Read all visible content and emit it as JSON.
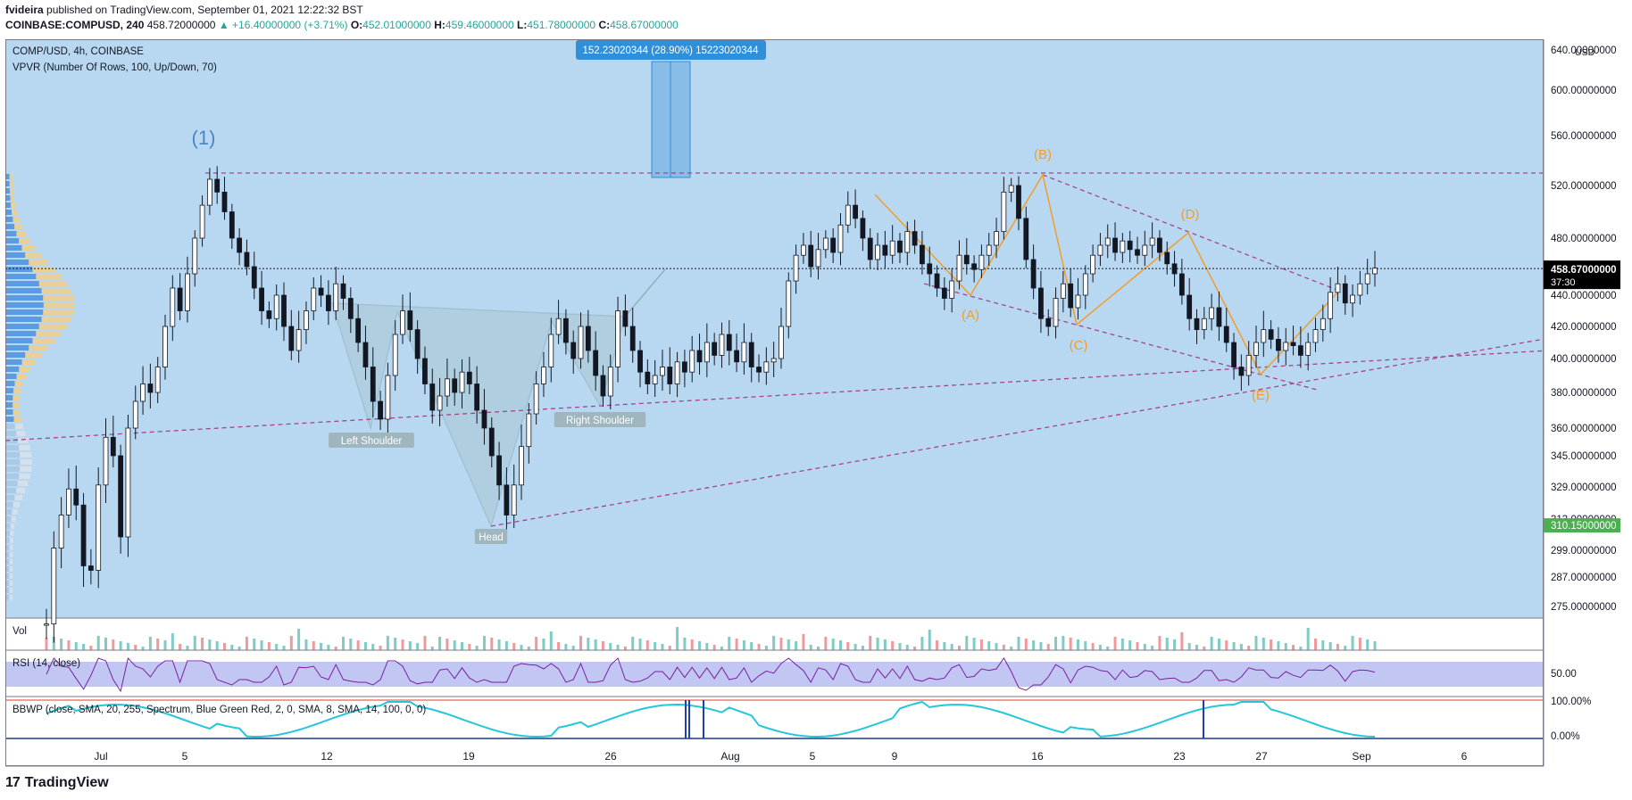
{
  "header": {
    "author": "fvideira",
    "published": "published on TradingView.com, September 01, 2021 12:22:32 BST",
    "symbol": "COINBASE:COMPUSD, 240",
    "last": "458.72000000",
    "change": "▲ +16.40000000 (+3.71%)",
    "o_label": "O:",
    "o": "452.01000000",
    "h_label": "H:",
    "h": "459.46000000",
    "l_label": "L:",
    "l": "451.78000000",
    "c_label": "C:",
    "c": "458.67000000"
  },
  "legend": {
    "pair": "COMP/USD, 4h, COINBASE",
    "vpvr": "VPVR (Number Of Rows, 100, Up/Down, 70)",
    "vol": "Vol",
    "rsi": "RSI (14, close)",
    "bbwp": "BBWP (close, SMA, 20, 255, Spectrum, Blue Green Red, 2, 0, SMA, 8, SMA, 14, 100, 0, 0)"
  },
  "colors": {
    "bg_pane": "#b8d8f2",
    "candle": "#131722",
    "trendline": "#a4448f",
    "wave": "#f39c29",
    "wave1": "#4a84c4",
    "pattern_fill": "#a9c9d4",
    "measure_fill": "#88bde8",
    "measure_label": "#2f8fd9",
    "last_price_bg": "#000000",
    "low_price_bg": "#4caf50",
    "rsi_line": "#7b1fa2",
    "rsi_band": "#b3b8f0"
  },
  "footer": {
    "brand": "TradingView"
  },
  "chart_data": {
    "type": "line",
    "title": "COMP/USD, 4h, COINBASE",
    "xlabel": "",
    "ylabel": "",
    "x_ticks": [
      "Jul",
      "5",
      "12",
      "19",
      "26",
      "Aug",
      "5",
      "9",
      "16",
      "23",
      "27",
      "Sep",
      "6"
    ],
    "y_unit": "USD",
    "y_ticks": [
      "640.00000000",
      "600.00000000",
      "560.00000000",
      "520.00000000",
      "480.00000000",
      "440.00000000",
      "420.00000000",
      "400.00000000",
      "380.00000000",
      "360.00000000",
      "345.00000000",
      "329.00000000",
      "313.00000000",
      "299.00000000",
      "287.00000000",
      "275.00000000"
    ],
    "ylim": [
      265,
      650
    ],
    "last_price": "458.67000000",
    "countdown": "37:30",
    "marked_low": "310.15000000",
    "measure_label": "152.23020344 (28.90%) 15223020344",
    "series": [
      {
        "values": [
          [
            0,
            268
          ],
          [
            2,
            300
          ],
          [
            3,
            315
          ],
          [
            4,
            328
          ],
          [
            5,
            320
          ],
          [
            6,
            292
          ],
          [
            7,
            290
          ],
          [
            8,
            330
          ],
          [
            9,
            355
          ],
          [
            10,
            345
          ],
          [
            11,
            305
          ],
          [
            12,
            360
          ],
          [
            13,
            375
          ],
          [
            14,
            385
          ],
          [
            15,
            380
          ],
          [
            16,
            395
          ],
          [
            17,
            420
          ],
          [
            18,
            445
          ],
          [
            19,
            430
          ],
          [
            20,
            455
          ],
          [
            21,
            480
          ],
          [
            22,
            505
          ],
          [
            23,
            525
          ],
          [
            24,
            515
          ],
          [
            25,
            500
          ],
          [
            26,
            480
          ],
          [
            27,
            470
          ],
          [
            28,
            460
          ],
          [
            29,
            445
          ],
          [
            30,
            430
          ],
          [
            31,
            425
          ],
          [
            32,
            440
          ],
          [
            33,
            420
          ],
          [
            34,
            405
          ],
          [
            35,
            418
          ],
          [
            36,
            430
          ],
          [
            37,
            445
          ],
          [
            38,
            440
          ],
          [
            39,
            430
          ],
          [
            40,
            448
          ],
          [
            41,
            438
          ],
          [
            42,
            425
          ],
          [
            43,
            410
          ],
          [
            44,
            395
          ],
          [
            45,
            375
          ],
          [
            46,
            365
          ],
          [
            47,
            390
          ],
          [
            48,
            415
          ],
          [
            49,
            430
          ],
          [
            50,
            418
          ],
          [
            51,
            400
          ],
          [
            52,
            385
          ],
          [
            53,
            370
          ],
          [
            54,
            378
          ],
          [
            55,
            388
          ],
          [
            56,
            380
          ],
          [
            57,
            392
          ],
          [
            58,
            385
          ],
          [
            59,
            370
          ],
          [
            60,
            360
          ],
          [
            61,
            345
          ],
          [
            62,
            330
          ],
          [
            63,
            315
          ],
          [
            64,
            330
          ],
          [
            65,
            350
          ],
          [
            66,
            368
          ],
          [
            67,
            385
          ],
          [
            68,
            395
          ],
          [
            69,
            415
          ],
          [
            70,
            425
          ],
          [
            71,
            410
          ],
          [
            72,
            400
          ],
          [
            73,
            420
          ],
          [
            74,
            405
          ],
          [
            75,
            390
          ],
          [
            76,
            378
          ],
          [
            77,
            395
          ],
          [
            78,
            430
          ],
          [
            79,
            420
          ],
          [
            80,
            405
          ],
          [
            81,
            392
          ],
          [
            82,
            385
          ],
          [
            83,
            390
          ],
          [
            84,
            395
          ],
          [
            85,
            385
          ],
          [
            86,
            398
          ],
          [
            87,
            392
          ],
          [
            88,
            405
          ],
          [
            89,
            398
          ],
          [
            90,
            410
          ],
          [
            91,
            402
          ],
          [
            92,
            415
          ],
          [
            93,
            405
          ],
          [
            94,
            398
          ],
          [
            95,
            410
          ],
          [
            96,
            395
          ],
          [
            97,
            392
          ],
          [
            98,
            398
          ],
          [
            99,
            400
          ],
          [
            100,
            420
          ],
          [
            101,
            450
          ],
          [
            102,
            468
          ],
          [
            103,
            475
          ],
          [
            104,
            460
          ],
          [
            105,
            472
          ],
          [
            106,
            480
          ],
          [
            107,
            470
          ],
          [
            108,
            490
          ],
          [
            109,
            505
          ],
          [
            110,
            495
          ],
          [
            111,
            480
          ],
          [
            112,
            465
          ],
          [
            113,
            475
          ],
          [
            114,
            468
          ],
          [
            115,
            478
          ],
          [
            116,
            470
          ],
          [
            117,
            485
          ],
          [
            118,
            475
          ],
          [
            119,
            462
          ],
          [
            120,
            455
          ],
          [
            121,
            445
          ],
          [
            122,
            438
          ],
          [
            123,
            450
          ],
          [
            124,
            468
          ],
          [
            125,
            462
          ],
          [
            126,
            458
          ],
          [
            127,
            468
          ],
          [
            128,
            475
          ],
          [
            129,
            485
          ],
          [
            130,
            515
          ],
          [
            131,
            520
          ],
          [
            132,
            495
          ],
          [
            133,
            465
          ],
          [
            134,
            445
          ],
          [
            135,
            425
          ],
          [
            136,
            420
          ],
          [
            137,
            438
          ],
          [
            138,
            448
          ],
          [
            139,
            432
          ],
          [
            140,
            440
          ],
          [
            141,
            455
          ],
          [
            142,
            468
          ],
          [
            143,
            475
          ],
          [
            144,
            480
          ],
          [
            145,
            470
          ],
          [
            146,
            478
          ],
          [
            147,
            472
          ],
          [
            148,
            468
          ],
          [
            149,
            475
          ],
          [
            150,
            480
          ],
          [
            151,
            470
          ],
          [
            152,
            462
          ],
          [
            153,
            455
          ],
          [
            154,
            440
          ],
          [
            155,
            425
          ],
          [
            156,
            418
          ],
          [
            157,
            425
          ],
          [
            158,
            432
          ],
          [
            159,
            420
          ],
          [
            160,
            410
          ],
          [
            161,
            395
          ],
          [
            162,
            390
          ],
          [
            163,
            402
          ],
          [
            164,
            410
          ],
          [
            165,
            418
          ],
          [
            166,
            412
          ],
          [
            167,
            405
          ],
          [
            168,
            410
          ],
          [
            169,
            408
          ],
          [
            170,
            402
          ],
          [
            171,
            410
          ],
          [
            172,
            418
          ],
          [
            173,
            425
          ],
          [
            174,
            442
          ],
          [
            175,
            448
          ],
          [
            176,
            435
          ],
          [
            177,
            440
          ],
          [
            178,
            448
          ],
          [
            179,
            455
          ],
          [
            180,
            459
          ]
        ]
      }
    ],
    "annotations": [
      {
        "text": "(1)"
      },
      {
        "text": "(A)"
      },
      {
        "text": "(B)"
      },
      {
        "text": "(C)"
      },
      {
        "text": "(D)"
      },
      {
        "text": "(E)"
      },
      {
        "text": "Left Shoulder"
      },
      {
        "text": "Head"
      },
      {
        "text": "Right Shoulder"
      }
    ],
    "subpanes": {
      "rsi_ticks": [
        "50.00"
      ],
      "bbwp_ticks": [
        "100.00%",
        "0.00%"
      ]
    }
  }
}
